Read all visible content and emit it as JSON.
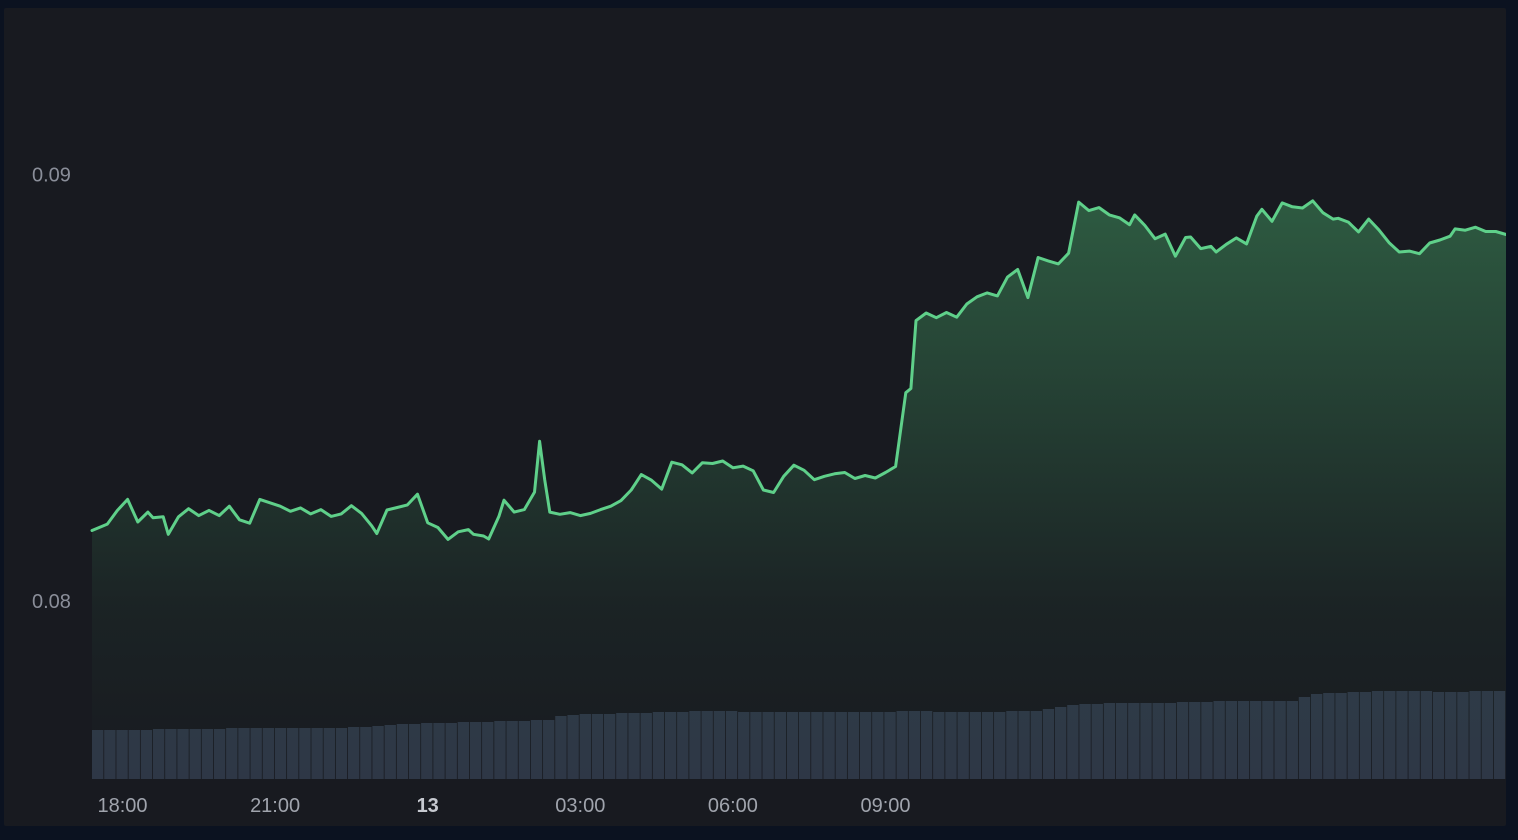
{
  "chart_data": {
    "type": "area",
    "title": "",
    "xlabel": "",
    "ylabel": "",
    "x_tick_labels": [
      "18:00",
      "21:00",
      "13",
      "03:00",
      "06:00",
      "09:00"
    ],
    "x_tick_hours": [
      0.6,
      3.6,
      6.6,
      9.6,
      12.6,
      15.6
    ],
    "bold_x_tick": "13",
    "y_tick_labels": [
      "0.09",
      "0.08"
    ],
    "y_tick_values": [
      0.09,
      0.08
    ],
    "ylim": [
      0.0758,
      0.0939
    ],
    "x_unit": "hours since 17:24",
    "line_color": "#5fd08a",
    "fill_color": "#3f8f5c",
    "volume_color": "#2e3746",
    "grid": false,
    "series": [
      {
        "name": "",
        "points": [
          [
            0.0,
            0.08165
          ],
          [
            0.3,
            0.0818
          ],
          [
            0.5,
            0.08212
          ],
          [
            0.7,
            0.08238
          ],
          [
            0.9,
            0.08185
          ],
          [
            1.1,
            0.08208
          ],
          [
            1.2,
            0.08195
          ],
          [
            1.4,
            0.08197
          ],
          [
            1.5,
            0.08156
          ],
          [
            1.7,
            0.08197
          ],
          [
            1.9,
            0.08216
          ],
          [
            2.1,
            0.082
          ],
          [
            2.3,
            0.08212
          ],
          [
            2.5,
            0.082
          ],
          [
            2.7,
            0.08222
          ],
          [
            2.9,
            0.0819
          ],
          [
            3.1,
            0.08182
          ],
          [
            3.3,
            0.08238
          ],
          [
            3.5,
            0.0823
          ],
          [
            3.7,
            0.08222
          ],
          [
            3.9,
            0.0821
          ],
          [
            4.1,
            0.08218
          ],
          [
            4.3,
            0.08204
          ],
          [
            4.5,
            0.08214
          ],
          [
            4.7,
            0.08198
          ],
          [
            4.9,
            0.08204
          ],
          [
            5.1,
            0.08223
          ],
          [
            5.3,
            0.08205
          ],
          [
            5.5,
            0.08176
          ],
          [
            5.6,
            0.08158
          ],
          [
            5.8,
            0.08213
          ],
          [
            6.0,
            0.08219
          ],
          [
            6.2,
            0.08225
          ],
          [
            6.4,
            0.0825
          ],
          [
            6.6,
            0.08183
          ],
          [
            6.8,
            0.08172
          ],
          [
            7.0,
            0.08144
          ],
          [
            7.2,
            0.08162
          ],
          [
            7.4,
            0.08167
          ],
          [
            7.5,
            0.08156
          ],
          [
            7.7,
            0.08152
          ],
          [
            7.8,
            0.08145
          ],
          [
            8.0,
            0.08198
          ],
          [
            8.1,
            0.08236
          ],
          [
            8.3,
            0.08208
          ],
          [
            8.5,
            0.08214
          ],
          [
            8.7,
            0.08255
          ],
          [
            8.8,
            0.08374
          ],
          [
            8.9,
            0.08284
          ],
          [
            9.0,
            0.08208
          ],
          [
            9.2,
            0.08203
          ],
          [
            9.4,
            0.08207
          ],
          [
            9.6,
            0.082
          ],
          [
            9.8,
            0.08205
          ],
          [
            10.0,
            0.08214
          ],
          [
            10.2,
            0.08222
          ],
          [
            10.4,
            0.08235
          ],
          [
            10.6,
            0.0826
          ],
          [
            10.8,
            0.08296
          ],
          [
            11.0,
            0.08283
          ],
          [
            11.2,
            0.08262
          ],
          [
            11.4,
            0.08325
          ],
          [
            11.6,
            0.08319
          ],
          [
            11.8,
            0.083
          ],
          [
            12.0,
            0.08324
          ],
          [
            12.2,
            0.08322
          ],
          [
            12.4,
            0.08328
          ],
          [
            12.6,
            0.08312
          ],
          [
            12.8,
            0.08316
          ],
          [
            13.0,
            0.08305
          ],
          [
            13.2,
            0.0826
          ],
          [
            13.4,
            0.08254
          ],
          [
            13.6,
            0.08292
          ],
          [
            13.8,
            0.08318
          ],
          [
            14.0,
            0.08306
          ],
          [
            14.2,
            0.08284
          ],
          [
            14.4,
            0.08292
          ],
          [
            14.6,
            0.08298
          ],
          [
            14.8,
            0.08301
          ],
          [
            15.0,
            0.08287
          ],
          [
            15.2,
            0.08294
          ],
          [
            15.4,
            0.08288
          ],
          [
            15.6,
            0.08301
          ],
          [
            15.8,
            0.08315
          ],
          [
            16.0,
            0.08488
          ],
          [
            16.1,
            0.08498
          ],
          [
            16.2,
            0.08657
          ],
          [
            16.4,
            0.08675
          ],
          [
            16.6,
            0.08664
          ],
          [
            16.8,
            0.08676
          ],
          [
            17.0,
            0.08665
          ],
          [
            17.2,
            0.08696
          ],
          [
            17.4,
            0.08713
          ],
          [
            17.6,
            0.08722
          ],
          [
            17.8,
            0.08715
          ],
          [
            18.0,
            0.08759
          ],
          [
            18.2,
            0.08777
          ],
          [
            18.4,
            0.08711
          ],
          [
            18.6,
            0.08805
          ],
          [
            18.8,
            0.08797
          ],
          [
            19.0,
            0.0879
          ],
          [
            19.2,
            0.08815
          ],
          [
            19.4,
            0.08935
          ],
          [
            19.6,
            0.08915
          ],
          [
            19.8,
            0.08922
          ],
          [
            20.0,
            0.08905
          ],
          [
            20.2,
            0.08898
          ],
          [
            20.4,
            0.08882
          ],
          [
            20.5,
            0.08905
          ],
          [
            20.7,
            0.0888
          ],
          [
            20.9,
            0.08849
          ],
          [
            21.1,
            0.0886
          ],
          [
            21.3,
            0.08808
          ],
          [
            21.5,
            0.08852
          ],
          [
            21.6,
            0.08853
          ],
          [
            21.8,
            0.08826
          ],
          [
            22.0,
            0.08831
          ],
          [
            22.1,
            0.08818
          ],
          [
            22.3,
            0.08836
          ],
          [
            22.5,
            0.08851
          ],
          [
            22.7,
            0.08837
          ],
          [
            22.9,
            0.08902
          ],
          [
            23.0,
            0.08918
          ],
          [
            23.2,
            0.0889
          ],
          [
            23.4,
            0.08933
          ],
          [
            23.6,
            0.08924
          ],
          [
            23.8,
            0.08921
          ],
          [
            24.0,
            0.08938
          ],
          [
            24.2,
            0.0891
          ],
          [
            24.4,
            0.08895
          ],
          [
            24.5,
            0.08897
          ],
          [
            24.7,
            0.08888
          ],
          [
            24.9,
            0.08865
          ],
          [
            25.1,
            0.08895
          ],
          [
            25.3,
            0.0887
          ],
          [
            25.5,
            0.0884
          ],
          [
            25.7,
            0.08818
          ],
          [
            25.9,
            0.0882
          ],
          [
            26.1,
            0.08814
          ],
          [
            26.3,
            0.08839
          ],
          [
            26.5,
            0.08846
          ],
          [
            26.7,
            0.08855
          ],
          [
            26.8,
            0.08872
          ],
          [
            27.0,
            0.08869
          ],
          [
            27.2,
            0.08876
          ],
          [
            27.4,
            0.08866
          ],
          [
            27.6,
            0.08866
          ],
          [
            27.8,
            0.08859
          ]
        ]
      }
    ],
    "volume": [
      0.49,
      0.49,
      0.49,
      0.49,
      0.49,
      0.5,
      0.5,
      0.5,
      0.5,
      0.5,
      0.5,
      0.51,
      0.51,
      0.51,
      0.51,
      0.51,
      0.51,
      0.51,
      0.51,
      0.51,
      0.51,
      0.52,
      0.52,
      0.53,
      0.54,
      0.55,
      0.55,
      0.56,
      0.56,
      0.56,
      0.57,
      0.57,
      0.57,
      0.58,
      0.58,
      0.58,
      0.59,
      0.59,
      0.63,
      0.64,
      0.65,
      0.65,
      0.65,
      0.66,
      0.66,
      0.66,
      0.67,
      0.67,
      0.67,
      0.68,
      0.68,
      0.68,
      0.68,
      0.67,
      0.67,
      0.67,
      0.67,
      0.67,
      0.67,
      0.67,
      0.67,
      0.67,
      0.67,
      0.67,
      0.67,
      0.67,
      0.68,
      0.68,
      0.68,
      0.67,
      0.67,
      0.67,
      0.67,
      0.67,
      0.67,
      0.68,
      0.68,
      0.68,
      0.7,
      0.72,
      0.74,
      0.75,
      0.75,
      0.76,
      0.76,
      0.76,
      0.76,
      0.76,
      0.76,
      0.77,
      0.77,
      0.77,
      0.78,
      0.78,
      0.78,
      0.78,
      0.78,
      0.78,
      0.78,
      0.82,
      0.85,
      0.86,
      0.86,
      0.87,
      0.87,
      0.88,
      0.88,
      0.88,
      0.88,
      0.88,
      0.87,
      0.87,
      0.87,
      0.88,
      0.88,
      0.88
    ]
  }
}
